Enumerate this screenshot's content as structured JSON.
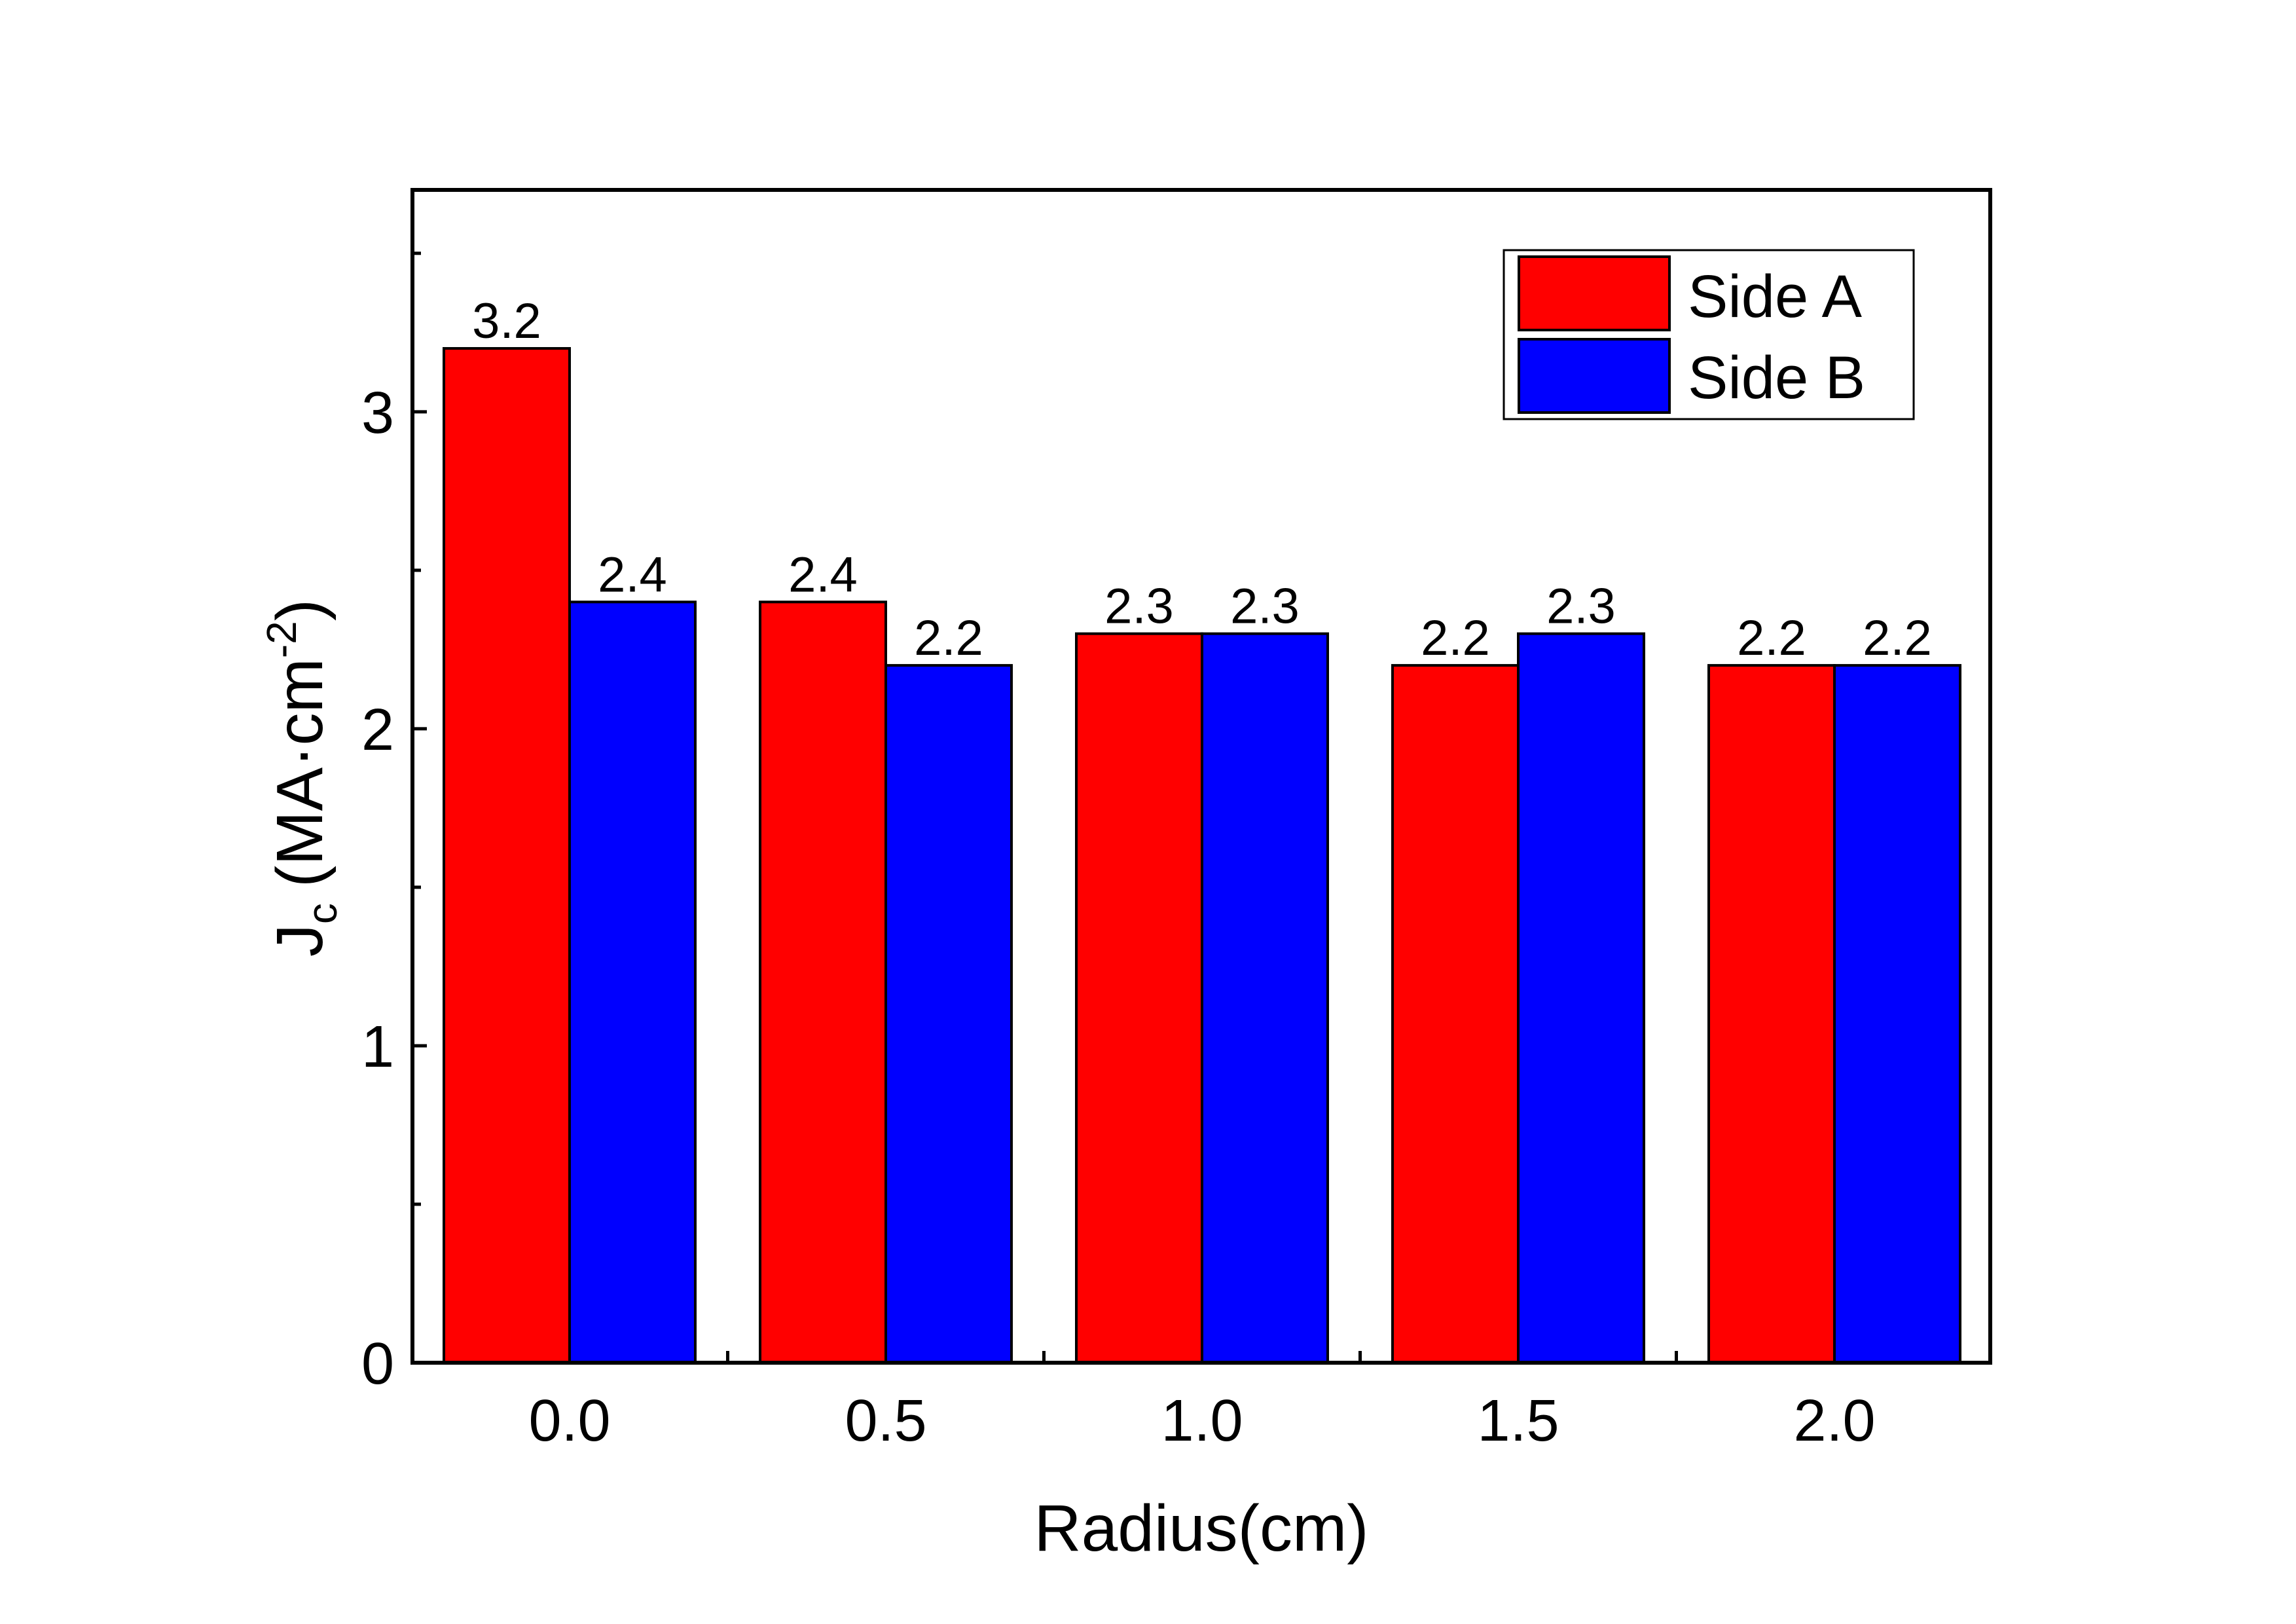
{
  "chart_data": {
    "type": "bar",
    "categories": [
      "0.0",
      "0.5",
      "1.0",
      "1.5",
      "2.0"
    ],
    "series": [
      {
        "name": "Side A",
        "values": [
          3.2,
          2.4,
          2.3,
          2.2,
          2.2
        ],
        "labels": [
          "3.2",
          "2.4",
          "2.3",
          "2.2",
          "2.2"
        ],
        "color": "#ff0000"
      },
      {
        "name": "Side B",
        "values": [
          2.4,
          2.2,
          2.3,
          2.3,
          2.2
        ],
        "labels": [
          "2.4",
          "2.2",
          "2.3",
          "2.3",
          "2.2"
        ],
        "color": "#0000ff"
      }
    ],
    "xlabel": "Radius(cm)",
    "ylabel": {
      "main": "J",
      "sub": "c",
      "unit": "(MA·cm",
      "sup": "-2",
      "close": ")"
    },
    "ylim": [
      0,
      3.7
    ],
    "yticks": [
      0,
      1,
      2,
      3
    ],
    "yticks_minor": [
      0.5,
      1.5,
      2.5,
      3.5
    ],
    "legend_position": "top-right",
    "grid": false
  }
}
